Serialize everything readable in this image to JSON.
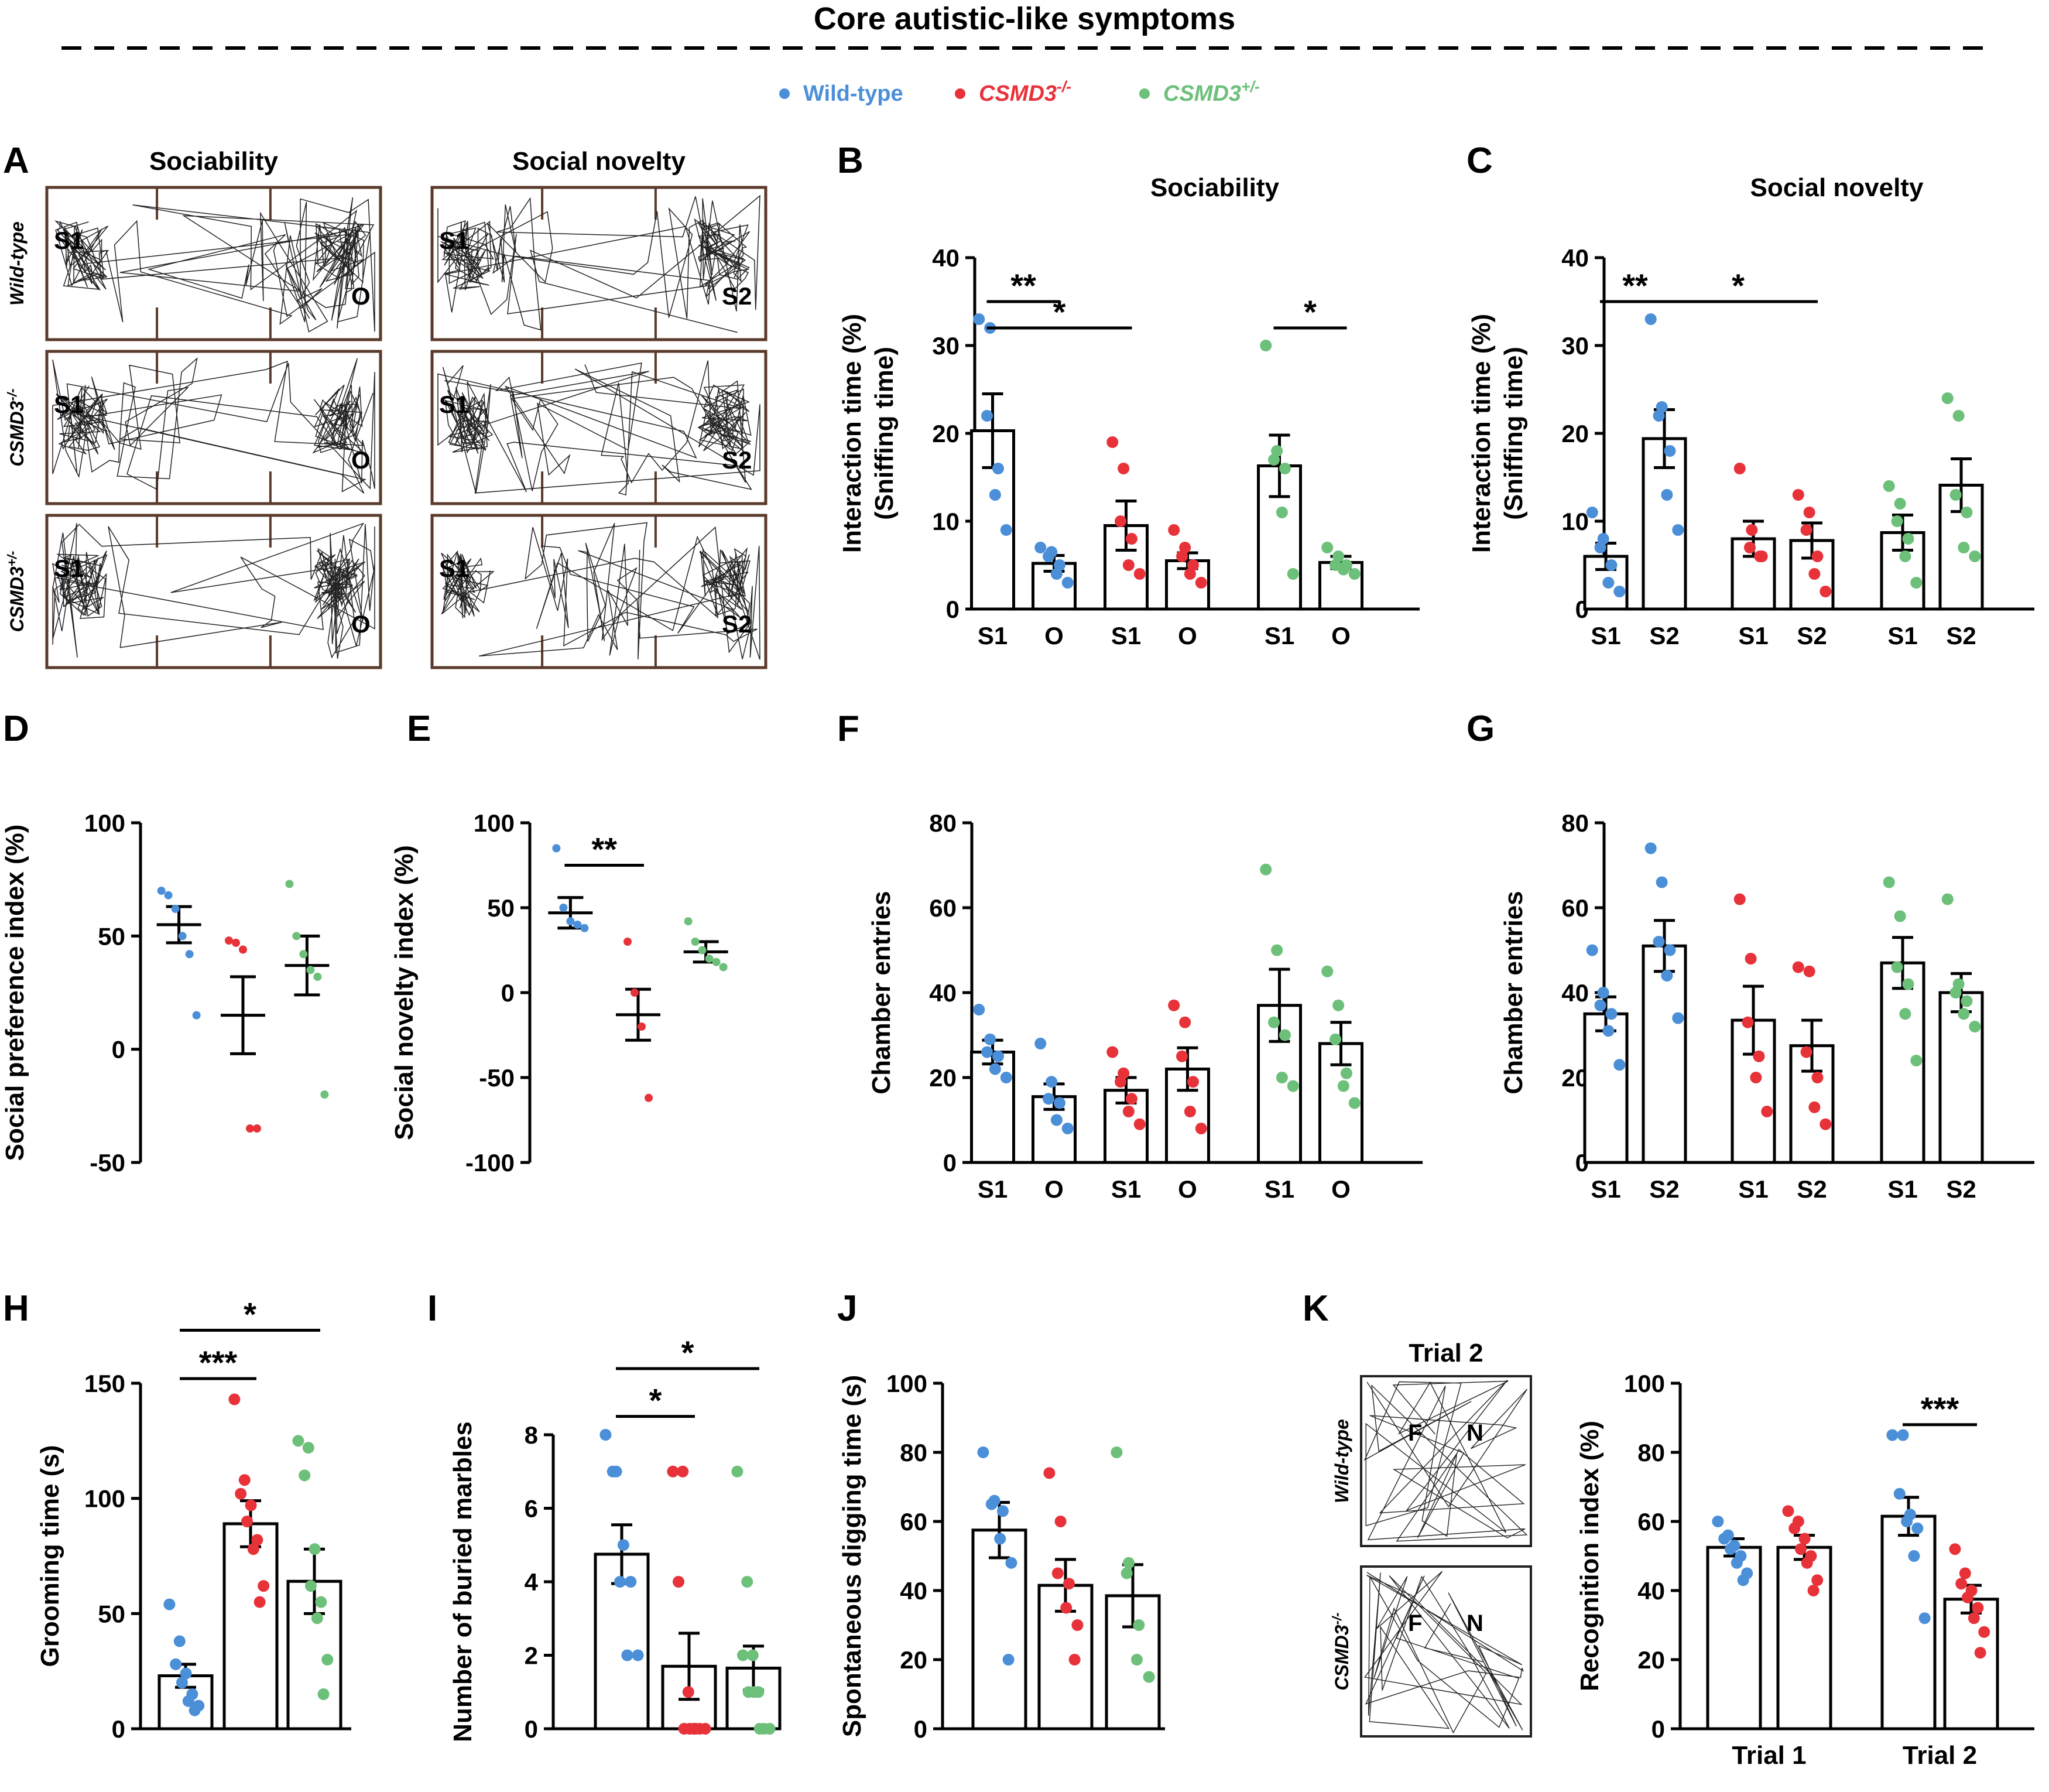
{
  "header": {
    "title": "Core autistic-like symptoms",
    "legend": [
      {
        "label": "Wild-type",
        "prefix": "",
        "suffix": "",
        "color": "#4a8fd8"
      },
      {
        "label": "CSMD3",
        "prefix": "",
        "suffix": "-/-",
        "color": "#e8323a"
      },
      {
        "label": "CSMD3",
        "prefix": "",
        "suffix": "+/-",
        "color": "#6cc07a"
      }
    ]
  },
  "colors": {
    "wt": "#4a8fd8",
    "ko": "#e8323a",
    "het": "#6cc07a",
    "axis": "#000000"
  },
  "panelA": {
    "letter": "A",
    "col_titles": [
      "Sociability",
      "Social novelty"
    ],
    "rows": [
      {
        "label": "Wild-type",
        "prefix": "",
        "suffix": ""
      },
      {
        "label": "CSMD3",
        "prefix": "",
        "suffix": "-/-"
      },
      {
        "label": "CSMD3",
        "prefix": "",
        "suffix": "+/-"
      }
    ],
    "left_labels": [
      "S1",
      "O"
    ],
    "right_labels": [
      "S1",
      "S2"
    ]
  },
  "panelK": {
    "letter": "K",
    "title": "Trial 2",
    "rows": [
      {
        "label": "Wild-type",
        "prefix": "",
        "suffix": ""
      },
      {
        "label": "CSMD3",
        "prefix": "",
        "suffix": "-/-"
      }
    ],
    "box_labels": [
      "F",
      "N"
    ]
  },
  "chart_data": [
    {
      "id": "B",
      "letter": "B",
      "type": "bar",
      "title": "Sociability",
      "ylabel": [
        "Interaction time (%)",
        "(Sniffing time)"
      ],
      "ylim": [
        0,
        40
      ],
      "yticks": [
        0,
        10,
        20,
        30,
        40
      ],
      "bars": [
        {
          "label": "S1",
          "group": "wt",
          "mean": 20.3,
          "sem": 4.2,
          "points": [
            33,
            32,
            22,
            16,
            13,
            9
          ]
        },
        {
          "label": "O",
          "group": "wt",
          "mean": 5.2,
          "sem": 0.9,
          "points": [
            7,
            6.5,
            6,
            5,
            4,
            3
          ]
        },
        {
          "label": "S1",
          "group": "ko",
          "mean": 9.5,
          "sem": 2.8,
          "points": [
            19,
            16,
            10,
            8,
            5,
            4
          ]
        },
        {
          "label": "O",
          "group": "ko",
          "mean": 5.5,
          "sem": 0.9,
          "points": [
            9,
            7,
            6,
            5,
            4,
            3
          ]
        },
        {
          "label": "S1",
          "group": "het",
          "mean": 16.3,
          "sem": 3.5,
          "points": [
            30,
            18,
            17,
            16,
            11,
            4
          ]
        },
        {
          "label": "O",
          "group": "het",
          "mean": 5.3,
          "sem": 0.7,
          "points": [
            7,
            6,
            5,
            5,
            4.5,
            4
          ]
        }
      ],
      "sig": [
        {
          "from": 0,
          "to": 1,
          "label": "**",
          "y": 35
        },
        {
          "from": 0,
          "to": 2,
          "label": "*",
          "y": 32
        },
        {
          "from": 4,
          "to": 5,
          "label": "*",
          "y": 32
        }
      ]
    },
    {
      "id": "C",
      "letter": "C",
      "type": "bar",
      "title": "Social novelty",
      "ylabel": [
        "Interaction time (%)",
        "(Sniffing time)"
      ],
      "ylim": [
        0,
        40
      ],
      "yticks": [
        0,
        10,
        20,
        30,
        40
      ],
      "bars": [
        {
          "label": "S1",
          "group": "wt",
          "mean": 6.0,
          "sem": 1.5,
          "points": [
            11,
            8,
            7,
            5,
            3,
            2
          ]
        },
        {
          "label": "S2",
          "group": "wt",
          "mean": 19.4,
          "sem": 3.3,
          "points": [
            33,
            23,
            22,
            18,
            13,
            9
          ]
        },
        {
          "label": "S1",
          "group": "ko",
          "mean": 8.0,
          "sem": 2.0,
          "points": [
            16,
            9,
            7,
            6,
            6
          ]
        },
        {
          "label": "S2",
          "group": "ko",
          "mean": 7.8,
          "sem": 2.0,
          "points": [
            13,
            11,
            9,
            6,
            4,
            2
          ]
        },
        {
          "label": "S1",
          "group": "het",
          "mean": 8.7,
          "sem": 2.0,
          "points": [
            14,
            12,
            10,
            8,
            6,
            3
          ]
        },
        {
          "label": "S2",
          "group": "het",
          "mean": 14.1,
          "sem": 3.0,
          "points": [
            24,
            22,
            13,
            11,
            7,
            6
          ]
        }
      ],
      "sig": [
        {
          "from": 0,
          "to": 1,
          "label": "**",
          "y": 35
        },
        {
          "from": 1,
          "to": 3,
          "label": "*",
          "y": 35
        }
      ]
    },
    {
      "id": "D",
      "letter": "D",
      "type": "scatter",
      "ylabel": [
        "Social preference index (%)"
      ],
      "ylim": [
        -50,
        100
      ],
      "yticks": [
        -50,
        0,
        50,
        100
      ],
      "groups": [
        {
          "group": "wt",
          "mean": 55,
          "sem": 8,
          "points": [
            70,
            68,
            62,
            50,
            42,
            15
          ]
        },
        {
          "group": "ko",
          "mean": 15,
          "sem": 17,
          "points": [
            48,
            47,
            44,
            -35,
            -35
          ]
        },
        {
          "group": "het",
          "mean": 37,
          "sem": 13,
          "points": [
            73,
            50,
            42,
            35,
            32,
            -20
          ]
        }
      ],
      "sig": []
    },
    {
      "id": "E",
      "letter": "E",
      "type": "scatter",
      "ylabel": [
        "Social novelty index (%)"
      ],
      "ylim": [
        -100,
        100
      ],
      "yticks": [
        -100,
        -50,
        0,
        50,
        100
      ],
      "groups": [
        {
          "group": "wt",
          "mean": 47,
          "sem": 9,
          "points": [
            85,
            50,
            42,
            40,
            38
          ]
        },
        {
          "group": "ko",
          "mean": -13,
          "sem": 15,
          "points": [
            30,
            0,
            -20,
            -62
          ]
        },
        {
          "group": "het",
          "mean": 24,
          "sem": 6,
          "points": [
            42,
            30,
            25,
            20,
            18,
            15
          ]
        }
      ],
      "sig": [
        {
          "from": 0,
          "to": 1,
          "label": "**",
          "y": 75
        }
      ]
    },
    {
      "id": "F",
      "letter": "F",
      "type": "bar",
      "ylabel": [
        "Chamber entries"
      ],
      "ylim": [
        0,
        80
      ],
      "yticks": [
        0,
        20,
        40,
        60,
        80
      ],
      "bars": [
        {
          "label": "S1",
          "group": "wt",
          "mean": 26,
          "sem": 2.8,
          "points": [
            36,
            29,
            26,
            25,
            22,
            20
          ]
        },
        {
          "label": "O",
          "group": "wt",
          "mean": 15.5,
          "sem": 3,
          "points": [
            28,
            19,
            15,
            14,
            10,
            8
          ]
        },
        {
          "label": "S1",
          "group": "ko",
          "mean": 17,
          "sem": 3,
          "points": [
            26,
            21,
            19,
            15,
            12,
            9
          ]
        },
        {
          "label": "O",
          "group": "ko",
          "mean": 22,
          "sem": 5,
          "points": [
            37,
            33,
            25,
            19,
            12,
            8
          ]
        },
        {
          "label": "S1",
          "group": "het",
          "mean": 37,
          "sem": 8.5,
          "points": [
            69,
            50,
            33,
            30,
            20,
            18
          ]
        },
        {
          "label": "O",
          "group": "het",
          "mean": 28,
          "sem": 5,
          "points": [
            45,
            37,
            29,
            21,
            18,
            14
          ]
        }
      ],
      "sig": []
    },
    {
      "id": "G",
      "letter": "G",
      "type": "bar",
      "ylabel": [
        "Chamber entries"
      ],
      "ylim": [
        0,
        80
      ],
      "yticks": [
        0,
        20,
        40,
        60,
        80
      ],
      "bars": [
        {
          "label": "S1",
          "group": "wt",
          "mean": 35,
          "sem": 4,
          "points": [
            50,
            40,
            37,
            35,
            31,
            23
          ]
        },
        {
          "label": "S2",
          "group": "wt",
          "mean": 51,
          "sem": 6,
          "points": [
            74,
            66,
            52,
            50,
            44,
            34
          ]
        },
        {
          "label": "S1",
          "group": "ko",
          "mean": 33.5,
          "sem": 8,
          "points": [
            62,
            48,
            33,
            25,
            20,
            12
          ]
        },
        {
          "label": "S2",
          "group": "ko",
          "mean": 27.5,
          "sem": 6,
          "points": [
            46,
            45,
            26,
            20,
            13,
            9
          ]
        },
        {
          "label": "S1",
          "group": "het",
          "mean": 47,
          "sem": 6,
          "points": [
            66,
            58,
            46,
            42,
            35,
            24
          ]
        },
        {
          "label": "S2",
          "group": "het",
          "mean": 40,
          "sem": 4.5,
          "points": [
            62,
            42,
            40,
            38,
            35,
            32
          ]
        }
      ],
      "sig": []
    },
    {
      "id": "H",
      "letter": "H",
      "type": "bar",
      "ylabel": [
        "Grooming time (s)"
      ],
      "ylim": [
        0,
        150
      ],
      "yticks": [
        0,
        50,
        100,
        150
      ],
      "bars": [
        {
          "label": "",
          "group": "wt",
          "mean": 23,
          "sem": 5,
          "points": [
            54,
            38,
            28,
            24,
            20,
            15,
            12,
            10,
            8
          ]
        },
        {
          "label": "",
          "group": "ko",
          "mean": 89,
          "sem": 10,
          "points": [
            143,
            108,
            102,
            97,
            90,
            82,
            78,
            62,
            55
          ]
        },
        {
          "label": "",
          "group": "het",
          "mean": 64,
          "sem": 14,
          "points": [
            125,
            122,
            110,
            78,
            62,
            55,
            48,
            30,
            15
          ]
        }
      ],
      "sig": [
        {
          "from": 0,
          "to": 1,
          "label": "***",
          "y": 152
        },
        {
          "from": 0,
          "to": 2,
          "label": "*",
          "y": 173
        }
      ]
    },
    {
      "id": "I",
      "letter": "I",
      "type": "bar",
      "ylabel": [
        "Number of buried marbles"
      ],
      "ylim": [
        0,
        8
      ],
      "yticks": [
        0,
        2,
        4,
        6,
        8
      ],
      "bars": [
        {
          "label": "",
          "group": "wt",
          "mean": 4.75,
          "sem": 0.8,
          "points": [
            8,
            7,
            7,
            5,
            4,
            4,
            2,
            2
          ]
        },
        {
          "label": "",
          "group": "ko",
          "mean": 1.7,
          "sem": 0.9,
          "points": [
            7,
            7,
            4,
            1,
            0,
            0,
            0,
            0,
            0,
            0
          ]
        },
        {
          "label": "",
          "group": "het",
          "mean": 1.65,
          "sem": 0.6,
          "points": [
            7,
            4,
            2,
            2,
            1,
            1,
            1,
            0,
            0,
            0
          ]
        }
      ],
      "sig": [
        {
          "from": 0,
          "to": 1,
          "label": "*",
          "y": 8.5
        },
        {
          "from": 0,
          "to": 2,
          "label": "*",
          "y": 9.8
        }
      ]
    },
    {
      "id": "J",
      "letter": "J",
      "type": "bar",
      "ylabel": [
        "Spontaneous digging time (s)"
      ],
      "ylim": [
        0,
        100
      ],
      "yticks": [
        0,
        20,
        40,
        60,
        80,
        100
      ],
      "bars": [
        {
          "label": "",
          "group": "wt",
          "mean": 57.5,
          "sem": 8,
          "points": [
            80,
            66,
            65,
            63,
            55,
            48,
            20
          ]
        },
        {
          "label": "",
          "group": "ko",
          "mean": 41.5,
          "sem": 7.5,
          "points": [
            74,
            60,
            45,
            42,
            35,
            30,
            20
          ]
        },
        {
          "label": "",
          "group": "het",
          "mean": 38.5,
          "sem": 9,
          "points": [
            80,
            48,
            45,
            30,
            20,
            15
          ]
        }
      ],
      "sig": []
    },
    {
      "id": "K",
      "letter": "",
      "type": "bar",
      "ylabel": [
        "Recognition index (%)"
      ],
      "ylim": [
        0,
        100
      ],
      "yticks": [
        0,
        20,
        40,
        60,
        80,
        100
      ],
      "bars": [
        {
          "label": "",
          "group": "wt",
          "mean": 52.5,
          "sem": 2.5,
          "points": [
            60,
            56,
            55,
            53,
            52,
            50,
            48,
            45,
            43
          ]
        },
        {
          "label": "",
          "group": "ko",
          "mean": 52.5,
          "sem": 3.5,
          "points": [
            63,
            60,
            58,
            55,
            52,
            50,
            48,
            43,
            40
          ]
        },
        {
          "label": "",
          "group": "wt",
          "mean": 61.5,
          "sem": 5.5,
          "points": [
            85,
            85,
            68,
            62,
            60,
            58,
            50,
            32
          ]
        },
        {
          "label": "",
          "group": "ko",
          "mean": 37.5,
          "sem": 4,
          "points": [
            52,
            45,
            42,
            40,
            38,
            35,
            32,
            28,
            22
          ]
        }
      ],
      "xgroups": [
        "Trial 1",
        "Trial 2"
      ],
      "sig": [
        {
          "from": 2,
          "to": 3,
          "label": "***",
          "y": 88
        }
      ]
    }
  ]
}
